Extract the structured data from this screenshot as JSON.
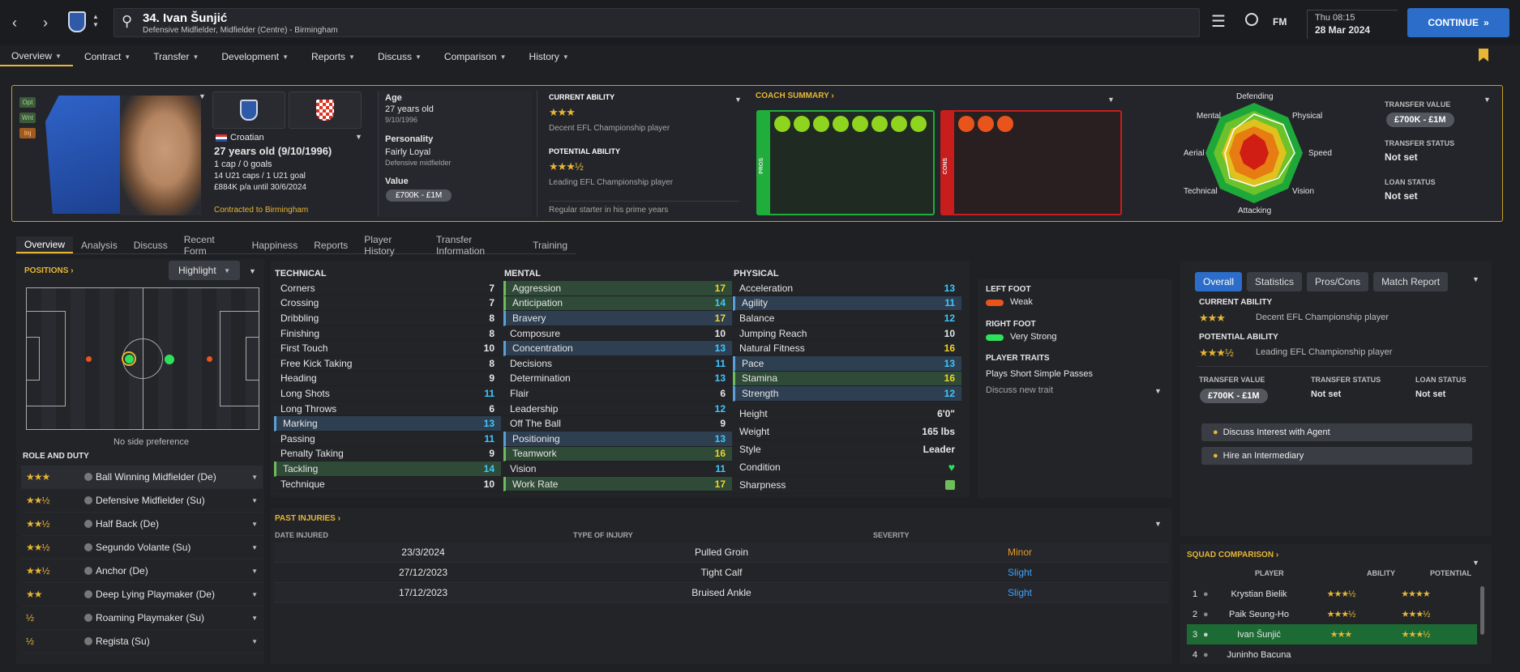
{
  "header": {
    "title": "34. Ivan Šunjić",
    "subtitle": "Defensive Midfielder, Midfielder (Centre) - Birmingham",
    "fm": "FM",
    "day": "Thu 08:15",
    "date": "28 Mar 2024",
    "continue": "CONTINUE"
  },
  "nav": [
    "Overview",
    "Contract",
    "Transfer",
    "Development",
    "Reports",
    "Discuss",
    "Comparison",
    "History"
  ],
  "card": {
    "tags": [
      "Opt",
      "Wnt",
      "Inj"
    ],
    "nationality": "Croatian",
    "age_line": "27 years old (9/10/1996)",
    "caps": "1 cap / 0 goals",
    "u21": "14 U21 caps / 1 U21 goal",
    "wage": "£884K p/a until 30/6/2024",
    "contracted": "Contracted to Birmingham",
    "age_label": "Age",
    "age_val": "27 years old",
    "dob": "9/10/1996",
    "personality_label": "Personality",
    "personality": "Fairly Loyal",
    "role_desc": "Defensive midfielder",
    "value_label": "Value",
    "value": "£700K - £1M",
    "ca_label": "CURRENT ABILITY",
    "ca_stars": "★★★",
    "ca_desc": "Decent EFL Championship player",
    "pa_label": "POTENTIAL ABILITY",
    "pa_stars": "★★★½",
    "pa_desc": "Leading EFL Championship player",
    "note": "Regular starter in his prime years",
    "coach": "COACH SUMMARY ›",
    "pros": "PROS",
    "cons": "CONS",
    "radar": {
      "top": "Defending",
      "tr": "Physical",
      "r": "Speed",
      "br": "Vision",
      "b": "Attacking",
      "bl": "Technical",
      "l": "Aerial",
      "tl": "Mental"
    },
    "tv_label": "TRANSFER VALUE",
    "tv": "£700K - £1M",
    "ts_label": "TRANSFER STATUS",
    "ts": "Not set",
    "ls_label": "LOAN STATUS",
    "ls": "Not set"
  },
  "subnav": [
    "Overview",
    "Analysis",
    "Discuss",
    "Recent Form",
    "Happiness",
    "Reports",
    "Player History",
    "Transfer Information",
    "Training"
  ],
  "positions": {
    "title": "POSITIONS ›",
    "highlight": "Highlight",
    "pref": "No side preference",
    "role_title": "ROLE AND DUTY",
    "roles": [
      {
        "s": "★★★",
        "n": "Ball Winning Midfielder (De)"
      },
      {
        "s": "★★½",
        "n": "Defensive Midfielder (Su)"
      },
      {
        "s": "★★½",
        "n": "Half Back (De)"
      },
      {
        "s": "★★½",
        "n": "Segundo Volante (Su)"
      },
      {
        "s": "★★½",
        "n": "Anchor (De)"
      },
      {
        "s": "★★",
        "n": "Deep Lying Playmaker (De)"
      },
      {
        "s": "½",
        "n": "Roaming Playmaker (Su)"
      },
      {
        "s": "½",
        "n": "Regista (Su)"
      }
    ]
  },
  "attrs": {
    "tech_title": "TECHNICAL",
    "ment_title": "MENTAL",
    "phys_title": "PHYSICAL",
    "technical": [
      [
        "Corners",
        "7"
      ],
      [
        "Crossing",
        "7"
      ],
      [
        "Dribbling",
        "8"
      ],
      [
        "Finishing",
        "8"
      ],
      [
        "First Touch",
        "10"
      ],
      [
        "Free Kick Taking",
        "8"
      ],
      [
        "Heading",
        "9"
      ],
      [
        "Long Shots",
        "11"
      ],
      [
        "Long Throws",
        "6"
      ],
      [
        "Marking",
        "13"
      ],
      [
        "Passing",
        "11"
      ],
      [
        "Penalty Taking",
        "9"
      ],
      [
        "Tackling",
        "14"
      ],
      [
        "Technique",
        "10"
      ]
    ],
    "mental": [
      [
        "Aggression",
        "17"
      ],
      [
        "Anticipation",
        "14"
      ],
      [
        "Bravery",
        "17"
      ],
      [
        "Composure",
        "10"
      ],
      [
        "Concentration",
        "13"
      ],
      [
        "Decisions",
        "11"
      ],
      [
        "Determination",
        "13"
      ],
      [
        "Flair",
        "6"
      ],
      [
        "Leadership",
        "12"
      ],
      [
        "Off The Ball",
        "9"
      ],
      [
        "Positioning",
        "13"
      ],
      [
        "Teamwork",
        "16"
      ],
      [
        "Vision",
        "11"
      ],
      [
        "Work Rate",
        "17"
      ]
    ],
    "physical": [
      [
        "Acceleration",
        "13"
      ],
      [
        "Agility",
        "11"
      ],
      [
        "Balance",
        "12"
      ],
      [
        "Jumping Reach",
        "10"
      ],
      [
        "Natural Fitness",
        "16"
      ],
      [
        "Pace",
        "13"
      ],
      [
        "Stamina",
        "16"
      ],
      [
        "Strength",
        "12"
      ]
    ],
    "height_l": "Height",
    "height": "6'0\"",
    "weight_l": "Weight",
    "weight": "165 lbs",
    "style_l": "Style",
    "style": "Leader",
    "cond_l": "Condition",
    "sharp_l": "Sharpness"
  },
  "feet": {
    "lf": "LEFT FOOT",
    "lfv": "Weak",
    "rf": "RIGHT FOOT",
    "rfv": "Very Strong",
    "traits": "PLAYER TRAITS",
    "trait1": "Plays Short Simple Passes",
    "discuss": "Discuss new trait"
  },
  "injuries": {
    "title": "PAST INJURIES ›",
    "h1": "DATE INJURED",
    "h2": "TYPE OF INJURY",
    "h3": "SEVERITY",
    "rows": [
      [
        "23/3/2024",
        "Pulled Groin",
        "Minor"
      ],
      [
        "27/12/2023",
        "Tight Calf",
        "Slight"
      ],
      [
        "17/12/2023",
        "Bruised Ankle",
        "Slight"
      ]
    ]
  },
  "right": {
    "tabs": [
      "Overall",
      "Statistics",
      "Pros/Cons",
      "Match Report"
    ],
    "ca_label": "CURRENT ABILITY",
    "ca_desc": "Decent EFL Championship player",
    "pa_label": "POTENTIAL ABILITY",
    "pa_desc": "Leading EFL Championship player",
    "tv_label": "TRANSFER VALUE",
    "tv": "£700K - £1M",
    "ts_label": "TRANSFER STATUS",
    "ts": "Not set",
    "ls_label": "LOAN STATUS",
    "ls": "Not set",
    "btn1": "Discuss Interest with Agent",
    "btn2": "Hire an Intermediary"
  },
  "squad": {
    "title": "SQUAD COMPARISON ›",
    "h1": "PLAYER",
    "h2": "ABILITY",
    "h3": "POTENTIAL",
    "rows": [
      [
        "1",
        "Krystian Bielik",
        "★★★½",
        "★★★★"
      ],
      [
        "2",
        "Paik Seung-Ho",
        "★★★½",
        "★★★½"
      ],
      [
        "3",
        "Ivan Šunjić",
        "★★★",
        "★★★½"
      ],
      [
        "4",
        "Juninho Bacuna",
        "",
        ""
      ]
    ]
  },
  "colors": {
    "accent": "#e6b634",
    "blue": "#2b6dc8",
    "pros": "#1fae3c",
    "cons": "#c81d1d"
  }
}
